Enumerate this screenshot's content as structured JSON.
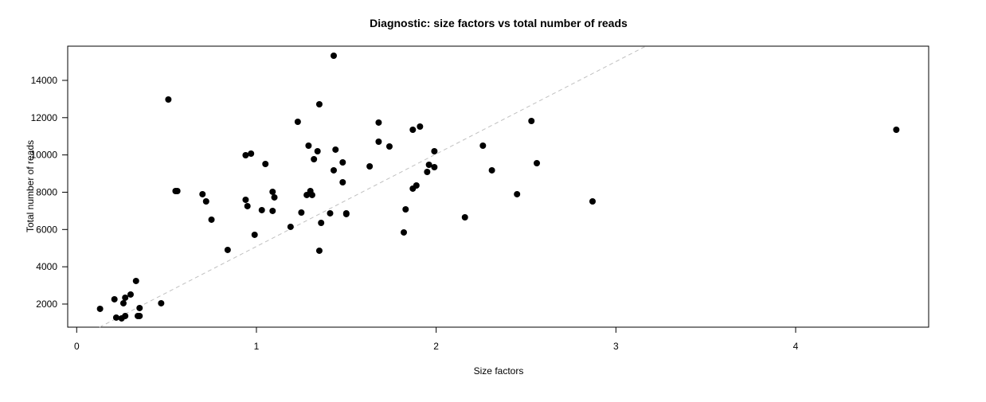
{
  "chart_data": {
    "type": "scatter",
    "title": "Diagnostic: size factors vs total number of reads",
    "xlabel": "Size factors",
    "ylabel": "Total number of reads",
    "xlim": [
      -0.05,
      4.74
    ],
    "ylim": [
      760,
      15835
    ],
    "xticks": [
      "0",
      "1",
      "2",
      "3",
      "4"
    ],
    "yticks": [
      "2000",
      "4000",
      "6000",
      "8000",
      "10000",
      "12000",
      "14000"
    ],
    "grid": false,
    "point_color": "#000000",
    "reference_line": {
      "style": "dashed",
      "color": "#c0c0c0",
      "slope": 4960,
      "intercept": 130
    },
    "points": [
      [
        0.13,
        1744
      ],
      [
        0.21,
        2256
      ],
      [
        0.26,
        2043
      ],
      [
        0.27,
        2342
      ],
      [
        0.3,
        2512
      ],
      [
        0.33,
        3238
      ],
      [
        0.35,
        1786
      ],
      [
        0.34,
        1360
      ],
      [
        0.35,
        1360
      ],
      [
        0.22,
        1274
      ],
      [
        0.25,
        1231
      ],
      [
        0.27,
        1360
      ],
      [
        0.47,
        2043
      ],
      [
        0.51,
        12974
      ],
      [
        0.55,
        8063
      ],
      [
        0.56,
        8063
      ],
      [
        0.7,
        7893
      ],
      [
        0.72,
        7508
      ],
      [
        0.75,
        6526
      ],
      [
        0.84,
        4904
      ],
      [
        0.94,
        7594
      ],
      [
        0.95,
        7252
      ],
      [
        0.94,
        9985
      ],
      [
        0.97,
        10070
      ],
      [
        0.99,
        5715
      ],
      [
        1.03,
        7039
      ],
      [
        1.05,
        9515
      ],
      [
        1.09,
        8021
      ],
      [
        1.09,
        6996
      ],
      [
        1.1,
        7722
      ],
      [
        1.19,
        6142
      ],
      [
        1.23,
        11778
      ],
      [
        1.25,
        6910
      ],
      [
        1.29,
        10497
      ],
      [
        1.3,
        8063
      ],
      [
        1.28,
        7850
      ],
      [
        1.31,
        7850
      ],
      [
        1.32,
        9771
      ],
      [
        1.34,
        10198
      ],
      [
        1.35,
        12718
      ],
      [
        1.36,
        6355
      ],
      [
        1.35,
        4861
      ],
      [
        1.41,
        6868
      ],
      [
        1.43,
        15322
      ],
      [
        1.43,
        9174
      ],
      [
        1.44,
        10284
      ],
      [
        1.48,
        9600
      ],
      [
        1.48,
        8533
      ],
      [
        1.5,
        6825
      ],
      [
        1.5,
        6868
      ],
      [
        1.63,
        9387
      ],
      [
        1.68,
        11736
      ],
      [
        1.68,
        10711
      ],
      [
        1.74,
        10454
      ],
      [
        1.82,
        5843
      ],
      [
        1.83,
        7081
      ],
      [
        1.87,
        11351
      ],
      [
        1.87,
        8192
      ],
      [
        1.89,
        8362
      ],
      [
        1.91,
        11522
      ],
      [
        1.95,
        9088
      ],
      [
        1.96,
        9472
      ],
      [
        1.99,
        10198
      ],
      [
        1.99,
        9344
      ],
      [
        2.16,
        6654
      ],
      [
        2.26,
        10497
      ],
      [
        2.31,
        9174
      ],
      [
        2.45,
        7893
      ],
      [
        2.53,
        11821
      ],
      [
        2.56,
        9557
      ],
      [
        2.87,
        7508
      ],
      [
        4.56,
        11351
      ]
    ]
  }
}
